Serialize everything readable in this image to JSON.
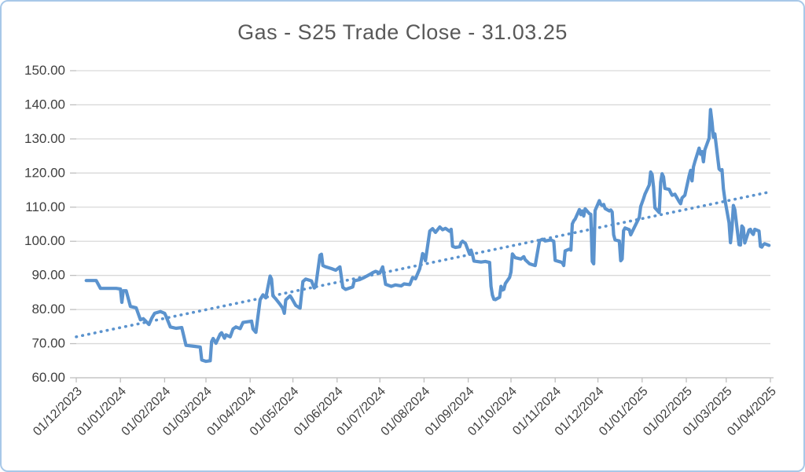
{
  "chart_data": {
    "type": "line",
    "title": "Gas - S25 Trade Close - 31.03.25",
    "legend": "none",
    "grid": "horizontal",
    "colors": {
      "series": "#5b93ce",
      "trend": "#5b93ce",
      "gridline": "#d9d9d9",
      "axis": "#bfbfbf",
      "tick_label": "#404040",
      "title": "#595959",
      "border": "#a8c8e8"
    },
    "y_axis": {
      "min": 60,
      "max": 150,
      "step": 10,
      "label_format": "2dp"
    },
    "y_tick_labels": [
      "150.00",
      "140.00",
      "130.00",
      "120.00",
      "110.00",
      "100.00",
      "90.00",
      "80.00",
      "70.00",
      "60.00"
    ],
    "x_tick_labels": [
      "01/12/2023",
      "01/01/2024",
      "01/02/2024",
      "01/03/2024",
      "01/04/2024",
      "01/05/2024",
      "01/06/2024",
      "01/07/2024",
      "01/08/2024",
      "01/09/2024",
      "01/10/2024",
      "01/11/2024",
      "01/12/2024",
      "01/01/2025",
      "01/02/2025",
      "01/03/2025",
      "01/04/2025"
    ],
    "series": [
      {
        "name": "Trade Close",
        "style": "solid",
        "points": [
          [
            "08/12/2023",
            88.5
          ],
          [
            "15/12/2023",
            88.5
          ],
          [
            "18/12/2023",
            86.2
          ],
          [
            "29/12/2023",
            86.2
          ],
          [
            "01/01/2024",
            86.0
          ],
          [
            "02/01/2024",
            82.1
          ],
          [
            "03/01/2024",
            85.5
          ],
          [
            "05/01/2024",
            85.5
          ],
          [
            "08/01/2024",
            80.9
          ],
          [
            "12/01/2024",
            80.5
          ],
          [
            "15/01/2024",
            77.0
          ],
          [
            "17/01/2024",
            77.3
          ],
          [
            "19/01/2024",
            76.5
          ],
          [
            "21/01/2024",
            75.6
          ],
          [
            "23/01/2024",
            77.5
          ],
          [
            "25/01/2024",
            78.9
          ],
          [
            "29/01/2024",
            79.4
          ],
          [
            "01/02/2024",
            78.9
          ],
          [
            "02/02/2024",
            78.0
          ],
          [
            "05/02/2024",
            74.9
          ],
          [
            "09/02/2024",
            74.5
          ],
          [
            "13/02/2024",
            74.7
          ],
          [
            "16/02/2024",
            69.5
          ],
          [
            "22/02/2024",
            69.2
          ],
          [
            "26/02/2024",
            69.0
          ],
          [
            "27/02/2024",
            65.2
          ],
          [
            "01/03/2024",
            64.8
          ],
          [
            "04/03/2024",
            65.0
          ],
          [
            "05/03/2024",
            70.6
          ],
          [
            "06/03/2024",
            71.5
          ],
          [
            "08/03/2024",
            70.1
          ],
          [
            "11/03/2024",
            72.8
          ],
          [
            "12/03/2024",
            73.2
          ],
          [
            "14/03/2024",
            71.6
          ],
          [
            "15/03/2024",
            72.6
          ],
          [
            "18/03/2024",
            72.0
          ],
          [
            "20/03/2024",
            74.3
          ],
          [
            "22/03/2024",
            74.9
          ],
          [
            "25/03/2024",
            74.4
          ],
          [
            "27/03/2024",
            76.2
          ],
          [
            "02/04/2024",
            76.6
          ],
          [
            "03/04/2024",
            74.3
          ],
          [
            "05/04/2024",
            73.3
          ],
          [
            "08/04/2024",
            82.9
          ],
          [
            "10/04/2024",
            84.3
          ],
          [
            "12/04/2024",
            83.4
          ],
          [
            "15/04/2024",
            89.8
          ],
          [
            "16/04/2024",
            88.9
          ],
          [
            "17/04/2024",
            84.0
          ],
          [
            "19/04/2024",
            83.1
          ],
          [
            "22/04/2024",
            81.5
          ],
          [
            "24/04/2024",
            80.3
          ],
          [
            "25/04/2024",
            78.9
          ],
          [
            "26/04/2024",
            82.8
          ],
          [
            "29/04/2024",
            84.0
          ],
          [
            "30/04/2024",
            83.4
          ],
          [
            "03/05/2024",
            81.2
          ],
          [
            "06/05/2024",
            80.4
          ],
          [
            "08/05/2024",
            88.2
          ],
          [
            "10/05/2024",
            88.9
          ],
          [
            "14/05/2024",
            88.4
          ],
          [
            "16/05/2024",
            86.3
          ],
          [
            "17/05/2024",
            86.8
          ],
          [
            "20/05/2024",
            95.9
          ],
          [
            "21/05/2024",
            96.2
          ],
          [
            "22/05/2024",
            92.9
          ],
          [
            "24/05/2024",
            92.5
          ],
          [
            "28/05/2024",
            92.0
          ],
          [
            "31/05/2024",
            91.5
          ],
          [
            "03/06/2024",
            92.5
          ],
          [
            "05/06/2024",
            86.5
          ],
          [
            "07/06/2024",
            85.9
          ],
          [
            "12/06/2024",
            86.6
          ],
          [
            "13/06/2024",
            88.4
          ],
          [
            "17/06/2024",
            88.8
          ],
          [
            "20/06/2024",
            89.4
          ],
          [
            "24/06/2024",
            90.3
          ],
          [
            "26/06/2024",
            90.8
          ],
          [
            "28/06/2024",
            91.2
          ],
          [
            "01/07/2024",
            90.7
          ],
          [
            "03/07/2024",
            92.5
          ],
          [
            "05/07/2024",
            87.4
          ],
          [
            "09/07/2024",
            86.8
          ],
          [
            "12/07/2024",
            87.2
          ],
          [
            "16/07/2024",
            86.9
          ],
          [
            "18/07/2024",
            87.5
          ],
          [
            "22/07/2024",
            87.3
          ],
          [
            "24/07/2024",
            89.4
          ],
          [
            "26/07/2024",
            89.0
          ],
          [
            "29/07/2024",
            92.0
          ],
          [
            "31/07/2024",
            96.4
          ],
          [
            "01/08/2024",
            95.9
          ],
          [
            "02/08/2024",
            94.3
          ],
          [
            "05/08/2024",
            103.0
          ],
          [
            "07/08/2024",
            103.7
          ],
          [
            "09/08/2024",
            102.6
          ],
          [
            "12/08/2024",
            104.2
          ],
          [
            "14/08/2024",
            103.4
          ],
          [
            "16/08/2024",
            103.8
          ],
          [
            "19/08/2024",
            102.9
          ],
          [
            "20/08/2024",
            103.5
          ],
          [
            "21/08/2024",
            98.5
          ],
          [
            "23/08/2024",
            98.2
          ],
          [
            "26/08/2024",
            98.4
          ],
          [
            "27/08/2024",
            99.6
          ],
          [
            "28/08/2024",
            100.0
          ],
          [
            "30/08/2024",
            99.4
          ],
          [
            "02/09/2024",
            96.2
          ],
          [
            "03/09/2024",
            97.4
          ],
          [
            "04/09/2024",
            96.0
          ],
          [
            "05/09/2024",
            94.2
          ],
          [
            "10/09/2024",
            93.9
          ],
          [
            "13/09/2024",
            94.1
          ],
          [
            "16/09/2024",
            93.8
          ],
          [
            "17/09/2024",
            86.8
          ],
          [
            "18/09/2024",
            84.2
          ],
          [
            "19/09/2024",
            83.0
          ],
          [
            "20/09/2024",
            82.9
          ],
          [
            "23/09/2024",
            83.6
          ],
          [
            "24/09/2024",
            86.8
          ],
          [
            "25/09/2024",
            85.7
          ],
          [
            "26/09/2024",
            85.9
          ],
          [
            "27/09/2024",
            87.6
          ],
          [
            "30/09/2024",
            89.4
          ],
          [
            "01/10/2024",
            91.0
          ],
          [
            "02/10/2024",
            96.3
          ],
          [
            "04/10/2024",
            95.2
          ],
          [
            "08/10/2024",
            94.8
          ],
          [
            "10/10/2024",
            95.5
          ],
          [
            "11/10/2024",
            94.6
          ],
          [
            "14/10/2024",
            93.4
          ],
          [
            "17/10/2024",
            93.0
          ],
          [
            "18/10/2024",
            92.9
          ],
          [
            "21/10/2024",
            100.2
          ],
          [
            "23/10/2024",
            100.6
          ],
          [
            "25/10/2024",
            100.1
          ],
          [
            "29/10/2024",
            100.4
          ],
          [
            "31/10/2024",
            100.0
          ],
          [
            "01/11/2024",
            94.4
          ],
          [
            "05/11/2024",
            93.9
          ],
          [
            "06/11/2024",
            93.7
          ],
          [
            "07/11/2024",
            92.9
          ],
          [
            "08/11/2024",
            97.2
          ],
          [
            "11/11/2024",
            97.7
          ],
          [
            "12/11/2024",
            97.4
          ],
          [
            "13/11/2024",
            105.1
          ],
          [
            "14/11/2024",
            106.0
          ],
          [
            "15/11/2024",
            106.5
          ],
          [
            "18/11/2024",
            109.3
          ],
          [
            "19/11/2024",
            107.8
          ],
          [
            "20/11/2024",
            108.9
          ],
          [
            "21/11/2024",
            107.4
          ],
          [
            "22/11/2024",
            109.5
          ],
          [
            "25/11/2024",
            108.1
          ],
          [
            "26/11/2024",
            107.9
          ],
          [
            "27/11/2024",
            94.1
          ],
          [
            "28/11/2024",
            93.4
          ],
          [
            "29/11/2024",
            109.0
          ],
          [
            "02/12/2024",
            111.9
          ],
          [
            "03/12/2024",
            110.8
          ],
          [
            "04/12/2024",
            110.5
          ],
          [
            "05/12/2024",
            110.8
          ],
          [
            "06/12/2024",
            109.6
          ],
          [
            "09/12/2024",
            108.9
          ],
          [
            "10/12/2024",
            109.2
          ],
          [
            "11/12/2024",
            108.6
          ],
          [
            "12/12/2024",
            101.9
          ],
          [
            "13/12/2024",
            100.4
          ],
          [
            "16/12/2024",
            100.1
          ],
          [
            "17/12/2024",
            94.3
          ],
          [
            "18/12/2024",
            94.8
          ],
          [
            "19/12/2024",
            103.1
          ],
          [
            "20/12/2024",
            103.9
          ],
          [
            "23/12/2024",
            103.4
          ],
          [
            "24/12/2024",
            101.9
          ],
          [
            "27/12/2024",
            104.5
          ],
          [
            "30/12/2024",
            107.0
          ],
          [
            "31/12/2024",
            110.2
          ],
          [
            "02/01/2025",
            112.5
          ],
          [
            "03/01/2025",
            113.8
          ],
          [
            "06/01/2025",
            116.5
          ],
          [
            "07/01/2025",
            120.3
          ],
          [
            "08/01/2025",
            119.6
          ],
          [
            "09/01/2025",
            116.0
          ],
          [
            "10/01/2025",
            109.8
          ],
          [
            "13/01/2025",
            108.4
          ],
          [
            "14/01/2025",
            117.3
          ],
          [
            "15/01/2025",
            119.8
          ],
          [
            "16/01/2025",
            118.9
          ],
          [
            "17/01/2025",
            115.5
          ],
          [
            "20/01/2025",
            115.2
          ],
          [
            "21/01/2025",
            114.3
          ],
          [
            "22/01/2025",
            113.5
          ],
          [
            "24/01/2025",
            113.8
          ],
          [
            "27/01/2025",
            111.6
          ],
          [
            "28/01/2025",
            111.0
          ],
          [
            "29/01/2025",
            112.7
          ],
          [
            "31/01/2025",
            113.5
          ],
          [
            "03/02/2025",
            119.3
          ],
          [
            "04/02/2025",
            120.8
          ],
          [
            "05/02/2025",
            117.7
          ],
          [
            "06/02/2025",
            121.8
          ],
          [
            "07/02/2025",
            123.3
          ],
          [
            "10/02/2025",
            127.3
          ],
          [
            "11/02/2025",
            125.5
          ],
          [
            "12/02/2025",
            126.3
          ],
          [
            "13/02/2025",
            123.3
          ],
          [
            "14/02/2025",
            126.8
          ],
          [
            "17/02/2025",
            130.2
          ],
          [
            "18/02/2025",
            138.6
          ],
          [
            "19/02/2025",
            135.0
          ],
          [
            "20/02/2025",
            130.5
          ],
          [
            "21/02/2025",
            131.5
          ],
          [
            "24/02/2025",
            121.2
          ],
          [
            "25/02/2025",
            120.8
          ],
          [
            "26/02/2025",
            121.0
          ],
          [
            "27/02/2025",
            115.4
          ],
          [
            "28/02/2025",
            112.4
          ],
          [
            "03/03/2025",
            105.4
          ],
          [
            "04/03/2025",
            99.6
          ],
          [
            "05/03/2025",
            103.5
          ],
          [
            "06/03/2025",
            110.5
          ],
          [
            "07/03/2025",
            109.3
          ],
          [
            "10/03/2025",
            99.0
          ],
          [
            "11/03/2025",
            98.9
          ],
          [
            "12/03/2025",
            104.5
          ],
          [
            "13/03/2025",
            103.9
          ],
          [
            "14/03/2025",
            99.5
          ],
          [
            "17/03/2025",
            103.3
          ],
          [
            "18/03/2025",
            103.5
          ],
          [
            "19/03/2025",
            102.5
          ],
          [
            "20/03/2025",
            102.0
          ],
          [
            "21/03/2025",
            103.5
          ],
          [
            "24/03/2025",
            103.0
          ],
          [
            "25/03/2025",
            98.5
          ],
          [
            "26/03/2025",
            98.3
          ],
          [
            "27/03/2025",
            99.0
          ],
          [
            "28/03/2025",
            99.3
          ],
          [
            "31/03/2025",
            98.8
          ]
        ]
      },
      {
        "name": "Linear trend",
        "style": "dotted",
        "points": [
          [
            "01/12/2023",
            72.0
          ],
          [
            "01/04/2025",
            114.5
          ]
        ]
      }
    ]
  }
}
